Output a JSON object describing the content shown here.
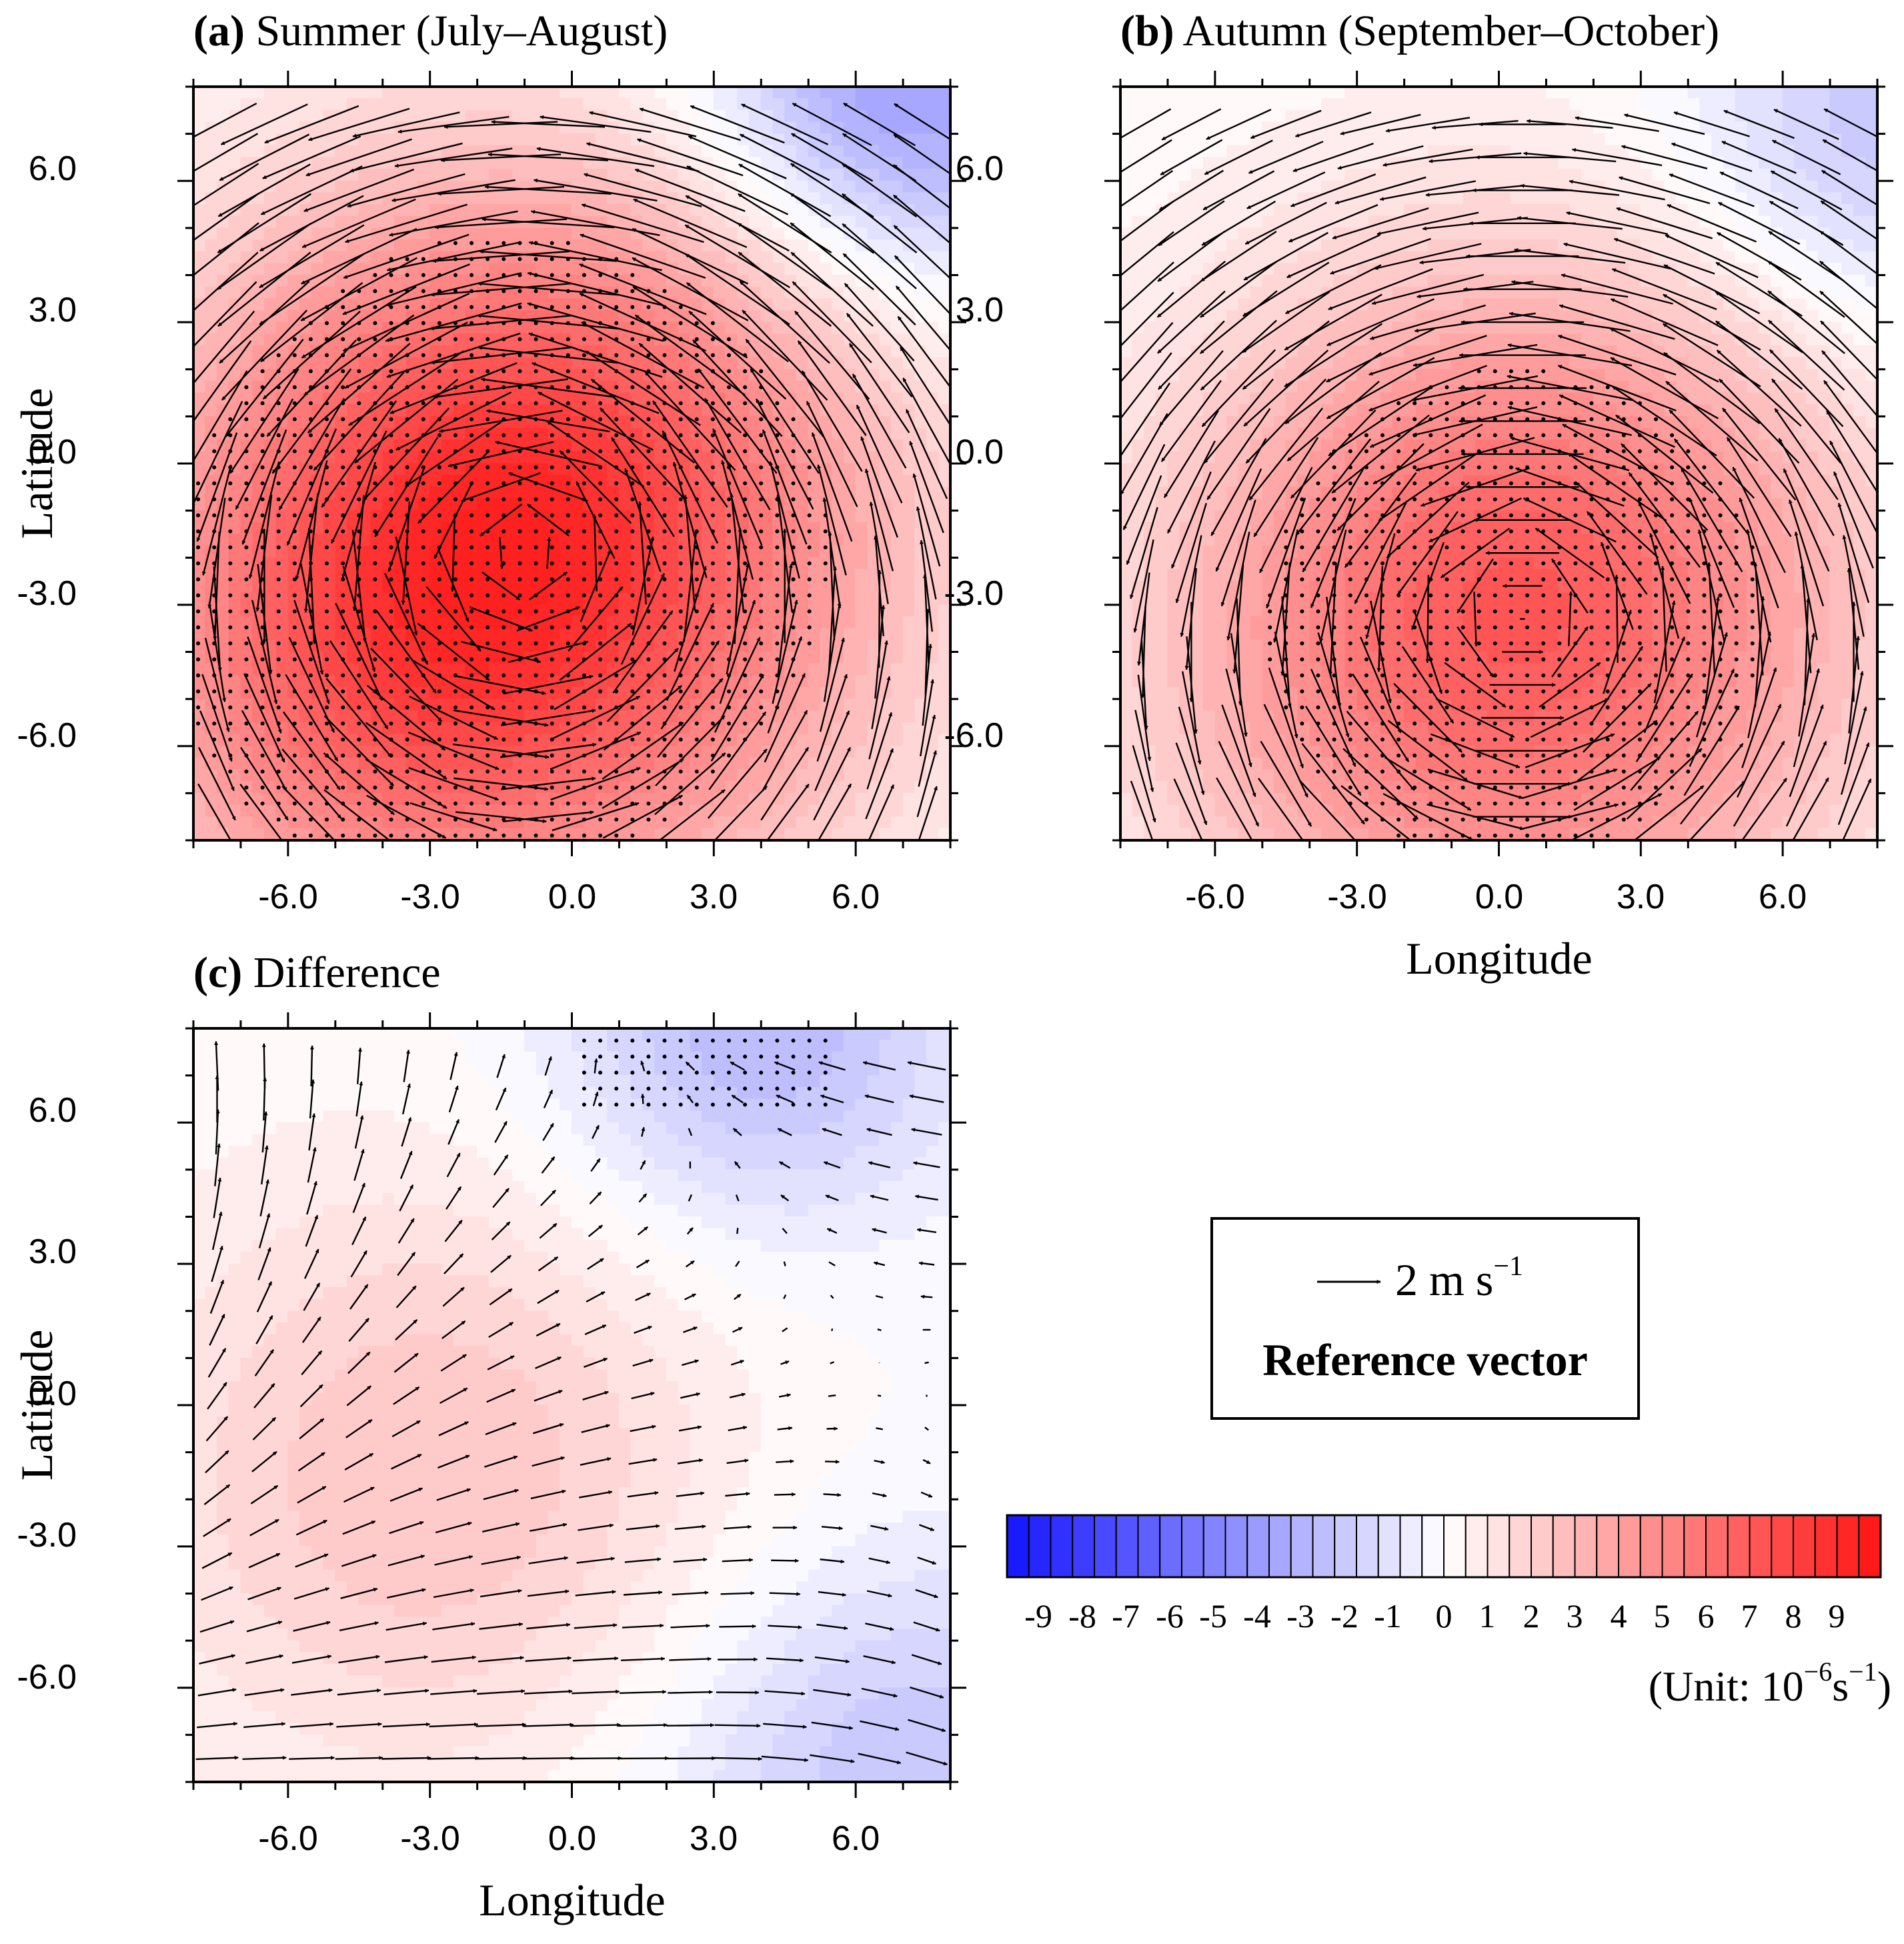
{
  "chart_data": [
    {
      "type": "contour+vector",
      "panel_letter": "(a)",
      "title": "Summer (July–August)",
      "xlabel": "",
      "ylabel": "Latitude",
      "xlim": [
        -8,
        8
      ],
      "ylim": [
        -8,
        8
      ],
      "xticks": [
        -6,
        -3,
        0,
        3,
        6
      ],
      "yticks": [
        -6,
        -3,
        0,
        3,
        6
      ],
      "xtick_labels": [
        "-6.0",
        "-3.0",
        "0.0",
        "3.0",
        "6.0"
      ],
      "ytick_labels": [
        "-6.0",
        "-3.0",
        "0.0",
        "3.0",
        "6.0"
      ],
      "field": {
        "center": [
          -1,
          -1.5
        ],
        "peak": 9,
        "spread": 5.2,
        "sw_extension": 2.0,
        "ne_minimum": -4.5,
        "ne_center": [
          7,
          8
        ]
      },
      "circulation": {
        "center": [
          -1,
          -1.5
        ],
        "sense": "counterclockwise",
        "max_speed": 4.2,
        "background_easterly": 0.8
      },
      "stippled": "area near the center and the top-right corner"
    },
    {
      "type": "contour+vector",
      "panel_letter": "(b)",
      "title": "Autumn (September–October)",
      "xlabel": "Longitude",
      "ylabel": "",
      "xlim": [
        -8,
        8
      ],
      "ylim": [
        -8,
        8
      ],
      "xticks": [
        -6,
        -3,
        0,
        3,
        6
      ],
      "yticks": [
        -6,
        -3,
        0,
        3,
        6
      ],
      "xtick_labels": [
        "-6.0",
        "-3.0",
        "0.0",
        "3.0",
        "6.0"
      ],
      "ytick_labels": [
        "-6.0",
        "-3.0",
        "0.0",
        "3.0",
        "6.0"
      ],
      "field": {
        "center": [
          0.5,
          -3
        ],
        "peak": 7,
        "spread": 5.0,
        "sw_extension": 0.5,
        "ne_minimum": -2.5,
        "ne_center": [
          8,
          7
        ]
      },
      "circulation": {
        "center": [
          0.5,
          -3
        ],
        "sense": "counterclockwise",
        "max_speed": 4.0,
        "background_easterly": 0.5
      },
      "stippled": "area near the center"
    },
    {
      "type": "contour+vector",
      "panel_letter": "(c)",
      "title": "Difference",
      "xlabel": "Longitude",
      "ylabel": "Latitude",
      "xlim": [
        -8,
        8
      ],
      "ylim": [
        -8,
        8
      ],
      "xticks": [
        -6,
        -3,
        0,
        3,
        6
      ],
      "yticks": [
        -6,
        -3,
        0,
        3,
        6
      ],
      "xtick_labels": [
        "-6.0",
        "-3.0",
        "0.0",
        "3.0",
        "6.0"
      ],
      "ytick_labels": [
        "-6.0",
        "-3.0",
        "0.0",
        "3.0",
        "6.0"
      ],
      "field": {
        "center": [
          -3,
          -1.5
        ],
        "peak": 2.5,
        "spread": 4.5,
        "sw_extension": 0,
        "ne_minimum": -3.0,
        "ne_center": [
          4,
          8
        ],
        "se_minimum": -2.5,
        "se_center": [
          7,
          -8
        ]
      },
      "circulation": {
        "pattern": "westerly south of 0, northerly-turning flow in the north-west, easterly in the north-east",
        "max_speed": 2.0
      },
      "stippled": "top-centre region near 2 to 6 longitude, 6 to 8 latitude"
    }
  ],
  "colorbar": {
    "levels": [
      "-9",
      "-8",
      "-7",
      "-6",
      "-5",
      "-4",
      "-3",
      "-2",
      "-1",
      "0",
      "1",
      "2",
      "3",
      "4",
      "5",
      "6",
      "7",
      "8",
      "9"
    ],
    "min": -10,
    "max": 10,
    "n_boxes": 40,
    "unit_prefix": "(Unit: 10",
    "unit_exp1": "−6",
    "unit_mid": "s",
    "unit_exp2": "−1",
    "unit_suffix": ")"
  },
  "reference_vector": {
    "value_label": "2 m s",
    "value_exponent": "−1",
    "caption": "Reference vector"
  },
  "colors": {
    "negative_max": "#1414ff",
    "neutral": "#ffffff",
    "positive_max": "#ff1414",
    "axis": "#000000"
  }
}
